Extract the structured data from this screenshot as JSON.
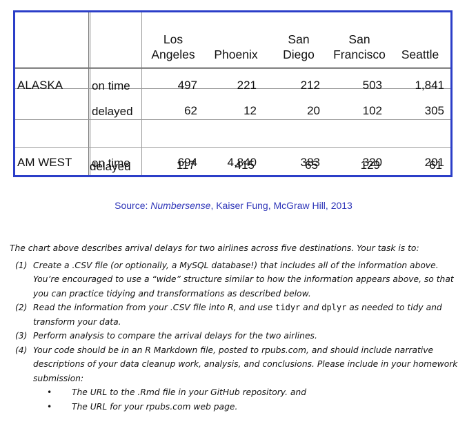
{
  "table": {
    "headers": {
      "la": [
        "Los",
        "Angeles"
      ],
      "phoenix": [
        "",
        "Phoenix"
      ],
      "sd": [
        "San",
        "Diego"
      ],
      "sf": [
        "San",
        "Francisco"
      ],
      "seattle": [
        "",
        "Seattle"
      ]
    },
    "rows": [
      {
        "airline": "ALASKA",
        "status": "on time",
        "values": [
          "497",
          "221",
          "212",
          "503",
          "1,841"
        ]
      },
      {
        "airline": "",
        "status": "delayed",
        "values": [
          "62",
          "12",
          "20",
          "102",
          "305"
        ]
      },
      {
        "airline": "AM WEST",
        "status": "on time",
        "values": [
          "694",
          "4,840",
          "383",
          "320",
          "201"
        ]
      },
      {
        "airline": "",
        "status": "delayed",
        "values": [
          "117",
          "415",
          "65",
          "129",
          "61"
        ]
      }
    ]
  },
  "source": {
    "prefix": "Source:  ",
    "book": "Numbersense",
    "suffix": ", Kaiser Fung, McGraw Hill, 2013"
  },
  "instructions": {
    "intro": "The chart above describes arrival delays for two airlines across five destinations.  Your task is to:",
    "tasks": [
      {
        "label": "(1)",
        "text": "Create a .CSV file (or optionally, a MySQL database!) that includes all of the information above. You’re encouraged to use a “wide” structure similar to how the information appears above, so that you can practice tidying and transformations as described below."
      },
      {
        "label": "(2)",
        "text_a": "Read the information from your .CSV file into R, and use ",
        "code_a": "tidyr",
        "text_b": " and ",
        "code_b": "dplyr",
        "text_c": " as needed to tidy and transform your data."
      },
      {
        "label": "(3)",
        "text": "Perform analysis to compare the arrival delays for the two airlines."
      },
      {
        "label": "(4)",
        "text": "Your code should be in an R Markdown file, posted to rpubs.com, and should include narrative descriptions of your data cleanup work, analysis, and conclusions.  Please include in your homework submission:"
      }
    ],
    "bullets": [
      "The URL to the .Rmd file in your GitHub repository. and",
      "The URL for your rpubs.com web page."
    ]
  }
}
